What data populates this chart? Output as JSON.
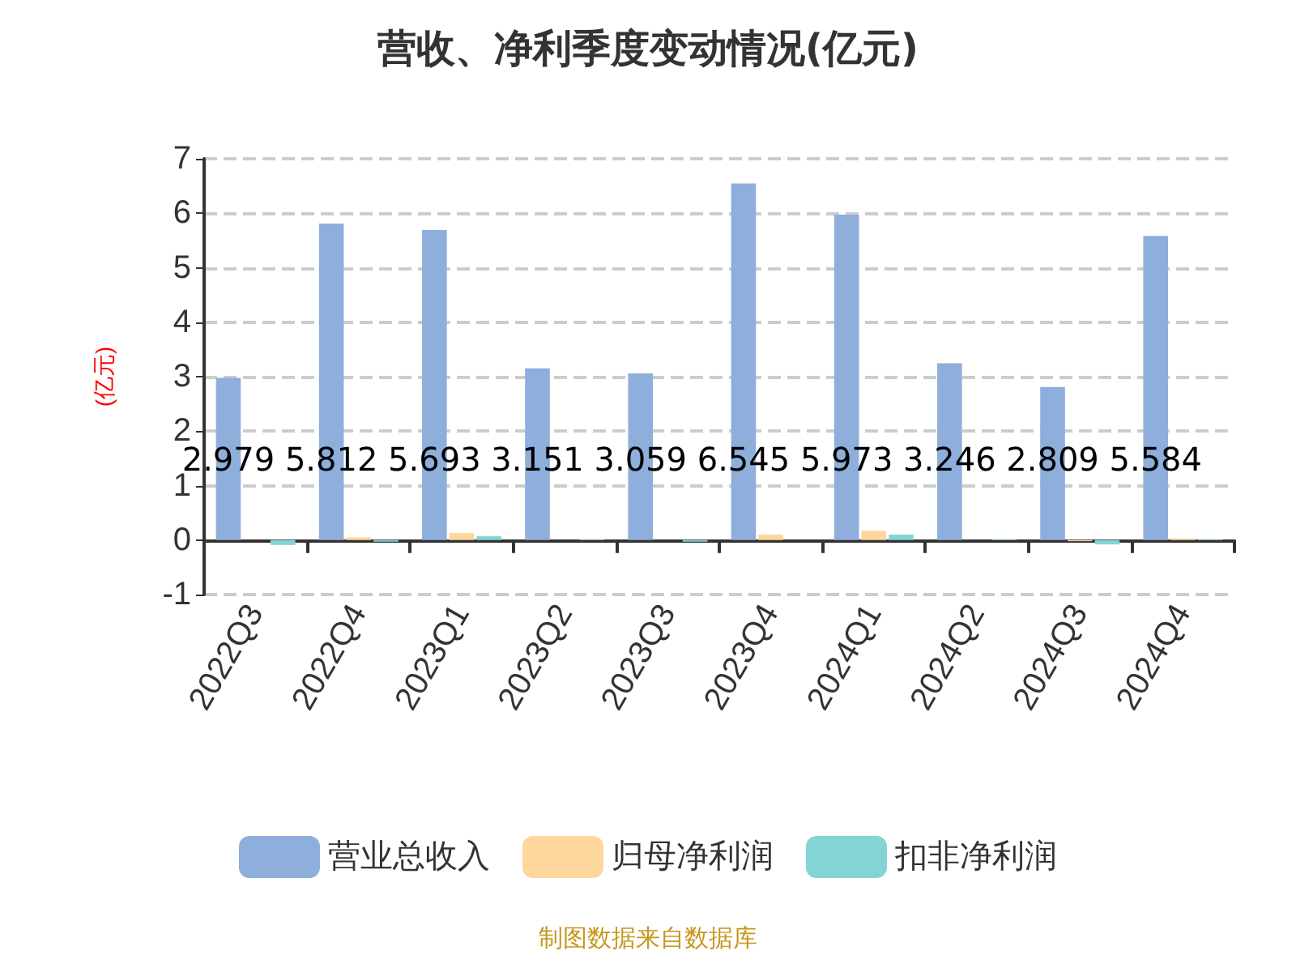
{
  "chart_data": {
    "type": "bar",
    "title": "营收、净利季度变动情况(亿元)",
    "ylabel": "(亿元)",
    "categories": [
      "2022Q3",
      "2022Q4",
      "2023Q1",
      "2023Q2",
      "2023Q3",
      "2023Q4",
      "2024Q1",
      "2024Q2",
      "2024Q3",
      "2024Q4"
    ],
    "series": [
      {
        "name": "营业总收入",
        "color": "#8eaedb",
        "values": [
          2.979,
          5.812,
          5.693,
          3.151,
          3.059,
          6.545,
          5.973,
          3.246,
          2.809,
          5.584
        ],
        "value_labels": [
          "2.979",
          "5.812",
          "5.693",
          "3.151",
          "3.059",
          "6.545",
          "5.973",
          "3.246",
          "2.809",
          "5.584"
        ]
      },
      {
        "name": "归母净利润",
        "color": "#fdd79b",
        "values": [
          null,
          0.05,
          0.13,
          null,
          null,
          0.1,
          0.17,
          null,
          -0.02,
          0.03
        ]
      },
      {
        "name": "扣非净利润",
        "color": "#84d4d6",
        "values": [
          -0.09,
          -0.03,
          0.07,
          0.01,
          -0.03,
          0.0,
          0.1,
          0.01,
          -0.08,
          0.01
        ]
      }
    ],
    "ylim": [
      -1,
      7
    ],
    "yticks": [
      -1,
      0,
      1,
      2,
      3,
      4,
      5,
      6,
      7
    ],
    "grid": "y",
    "legend": "bottom",
    "annotations": [
      "制图数据来自数据库"
    ]
  }
}
